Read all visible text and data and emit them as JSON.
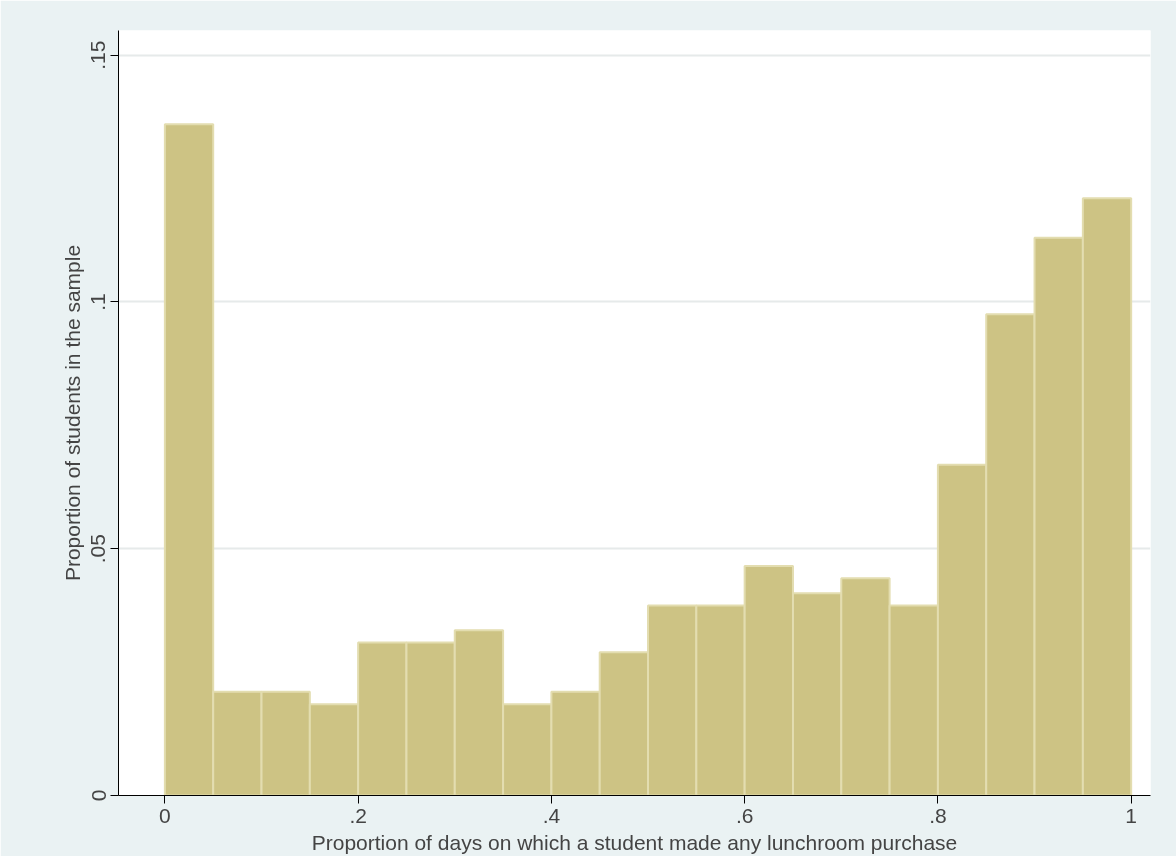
{
  "chart_data": {
    "type": "histogram",
    "xlabel": "Proportion of days on which a student made any lunchroom purchase",
    "ylabel": "Proportion of students in the sample",
    "bins": [
      0,
      0.05,
      0.1,
      0.15,
      0.2,
      0.25,
      0.3,
      0.35,
      0.4,
      0.45,
      0.5,
      0.55,
      0.6,
      0.65,
      0.7,
      0.75,
      0.8,
      0.85,
      0.9,
      0.95,
      1
    ],
    "values": [
      0.136,
      0.021,
      0.021,
      0.0185,
      0.031,
      0.031,
      0.0335,
      0.0185,
      0.021,
      0.029,
      0.0385,
      0.0385,
      0.0465,
      0.041,
      0.044,
      0.0385,
      0.067,
      0.0975,
      0.113,
      0.121
    ],
    "color": "#cdc384",
    "xlim": [
      -0.048,
      1.02
    ],
    "ylim": [
      0,
      0.155
    ],
    "xticks": [
      {
        "value": 0,
        "label": "0"
      },
      {
        "value": 0.2,
        "label": ".2"
      },
      {
        "value": 0.4,
        "label": ".4"
      },
      {
        "value": 0.6,
        "label": ".6"
      },
      {
        "value": 0.8,
        "label": ".8"
      },
      {
        "value": 1,
        "label": "1"
      }
    ],
    "yticks": [
      {
        "value": 0,
        "label": "0"
      },
      {
        "value": 0.05,
        "label": ".05"
      },
      {
        "value": 0.1,
        "label": ".1"
      },
      {
        "value": 0.15,
        "label": ".15"
      }
    ],
    "grid": "y"
  }
}
